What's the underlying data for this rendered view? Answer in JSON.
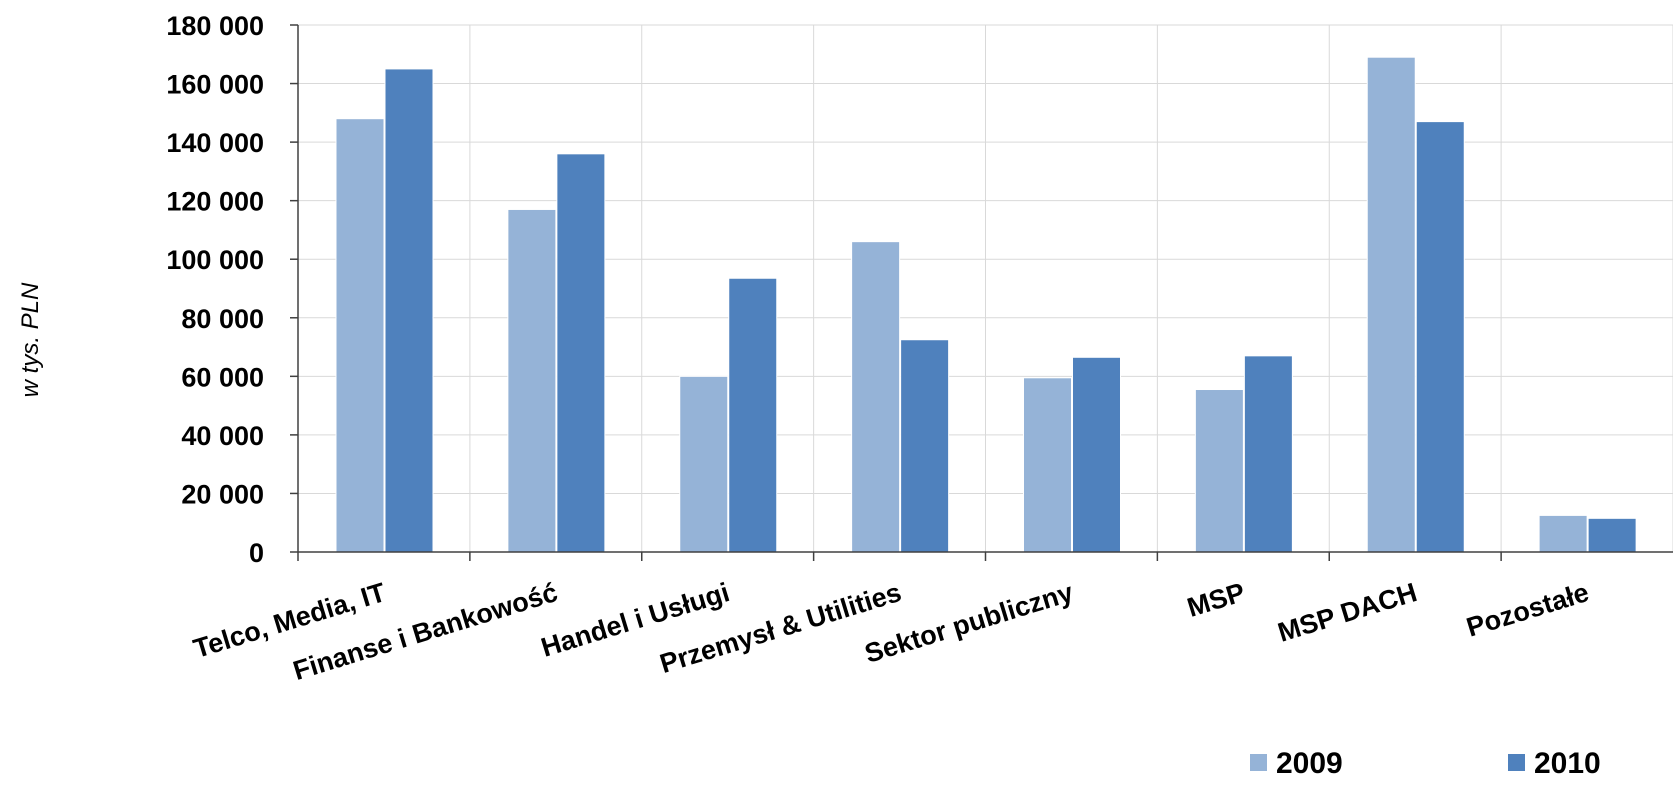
{
  "chart_data": {
    "type": "bar",
    "title": "",
    "xlabel": "",
    "ylabel": "w tys. PLN",
    "ylim": [
      0,
      180000
    ],
    "ytick_step": 20000,
    "ytick_labels": [
      "0",
      "20 000",
      "40 000",
      "60 000",
      "80 000",
      "100 000",
      "120 000",
      "140 000",
      "160 000",
      "180 000"
    ],
    "grid": true,
    "legend_position": "bottom-right",
    "categories": [
      "Telco, Media, IT",
      "Finanse i Bankowość",
      "Handel i Usługi",
      "Przemysł & Utilities",
      "Sektor publiczny",
      "MSP",
      "MSP DACH",
      "Pozostałe"
    ],
    "series": [
      {
        "name": "2009",
        "color": "#95B3D7",
        "values": [
          148000,
          117000,
          60000,
          106000,
          59500,
          55500,
          169000,
          12500
        ]
      },
      {
        "name": "2010",
        "color": "#4F81BD",
        "values": [
          165000,
          136000,
          93500,
          72500,
          66500,
          67000,
          147000,
          11500
        ]
      }
    ]
  }
}
